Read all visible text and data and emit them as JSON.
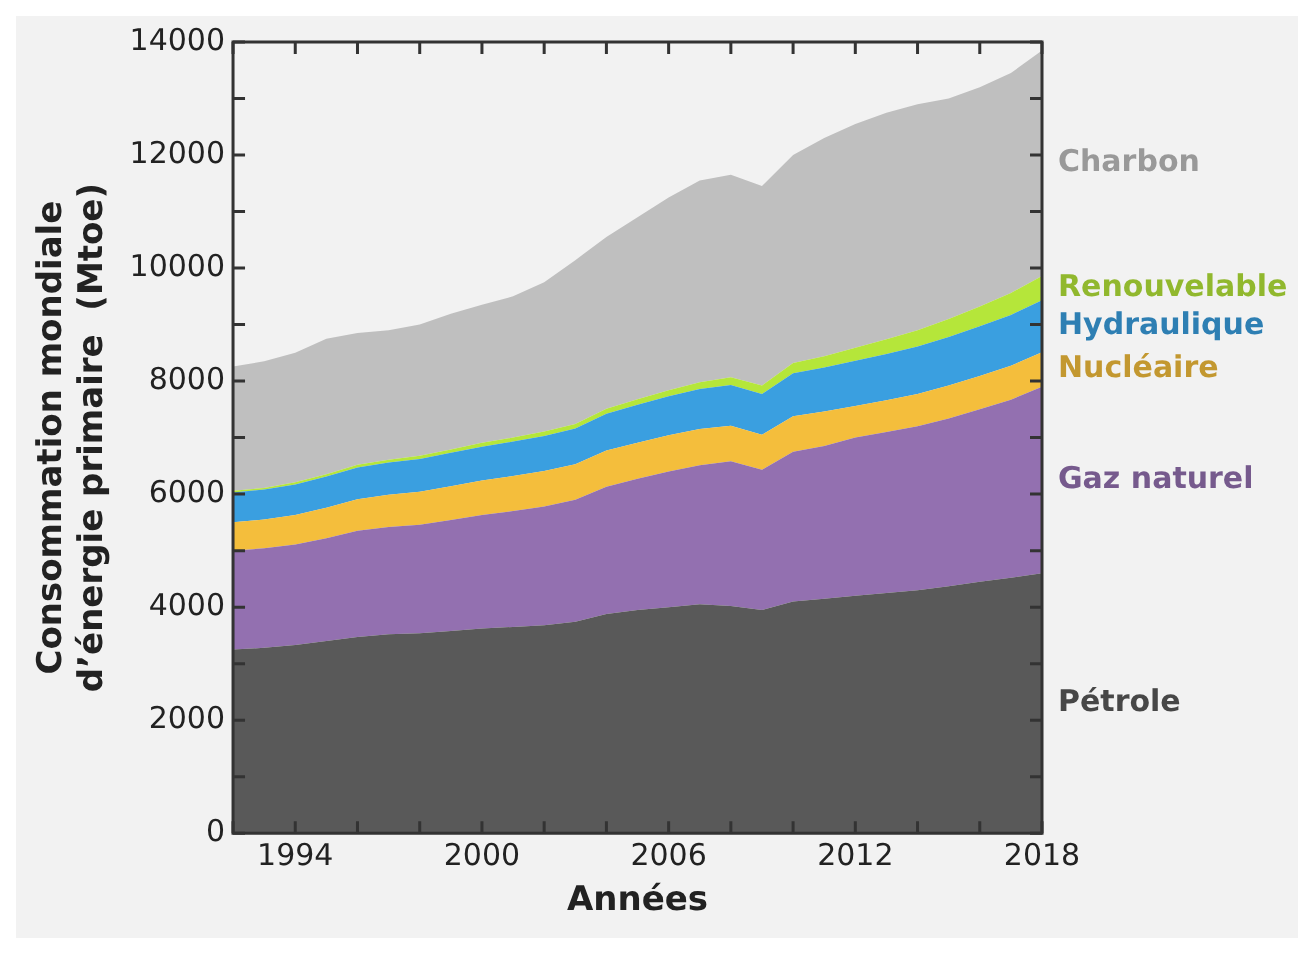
{
  "chart_data": {
    "type": "area",
    "stacked": true,
    "xlabel": "Années",
    "ylabel": "Consommation mondiale\nd’énergie primaire  (Mtoe)",
    "x": [
      1992,
      1993,
      1994,
      1995,
      1996,
      1997,
      1998,
      1999,
      2000,
      2001,
      2002,
      2003,
      2004,
      2005,
      2006,
      2007,
      2008,
      2009,
      2010,
      2011,
      2012,
      2013,
      2014,
      2015,
      2016,
      2017,
      2018
    ],
    "xlim": [
      1992,
      2018
    ],
    "xticks": [
      {
        "value": 1992,
        "label": null
      },
      1994,
      {
        "value": 1996,
        "label": null
      },
      {
        "value": 1998,
        "label": null
      },
      2000,
      {
        "value": 2002,
        "label": null
      },
      {
        "value": 2004,
        "label": null
      },
      2006,
      {
        "value": 2008,
        "label": null
      },
      {
        "value": 2010,
        "label": null
      },
      2012,
      {
        "value": 2014,
        "label": null
      },
      {
        "value": 2016,
        "label": null
      },
      2018
    ],
    "ylim": [
      0,
      14000
    ],
    "yticks": [
      0,
      {
        "value": 1000,
        "label": null
      },
      2000,
      {
        "value": 3000,
        "label": null
      },
      4000,
      {
        "value": 5000,
        "label": null
      },
      6000,
      {
        "value": 7000,
        "label": null
      },
      8000,
      {
        "value": 9000,
        "label": null
      },
      10000,
      {
        "value": 11000,
        "label": null
      },
      12000,
      {
        "value": 13000,
        "label": null
      },
      14000
    ],
    "grid": false,
    "legend": "right",
    "series": [
      {
        "name": "Pétrole",
        "color": "#595959",
        "values": [
          3250,
          3280,
          3330,
          3400,
          3470,
          3520,
          3540,
          3580,
          3620,
          3650,
          3680,
          3740,
          3880,
          3950,
          4000,
          4050,
          4020,
          3950,
          4100,
          4150,
          4200,
          4250,
          4300,
          4370,
          4450,
          4520,
          4600
        ]
      },
      {
        "name": "Gaz naturel",
        "color": "#9370b0",
        "values": [
          1750,
          1760,
          1780,
          1820,
          1880,
          1900,
          1920,
          1960,
          2010,
          2050,
          2100,
          2160,
          2250,
          2320,
          2400,
          2460,
          2560,
          2480,
          2650,
          2700,
          2800,
          2850,
          2900,
          2970,
          3050,
          3150,
          3300
        ]
      },
      {
        "name": "Nucléaire",
        "color": "#f4be3c",
        "values": [
          500,
          510,
          520,
          540,
          560,
          570,
          580,
          600,
          610,
          620,
          630,
          630,
          640,
          640,
          640,
          640,
          630,
          620,
          630,
          610,
          560,
          560,
          570,
          580,
          590,
          600,
          610
        ]
      },
      {
        "name": "Hydraulique",
        "color": "#3a9fe0",
        "values": [
          530,
          530,
          540,
          550,
          560,
          570,
          580,
          590,
          600,
          610,
          620,
          630,
          650,
          670,
          690,
          710,
          720,
          720,
          760,
          780,
          800,
          820,
          840,
          860,
          880,
          900,
          920
        ]
      },
      {
        "name": "Renouvelable",
        "color": "#b5e63a",
        "values": [
          30,
          30,
          40,
          40,
          50,
          50,
          60,
          60,
          70,
          70,
          80,
          80,
          90,
          100,
          110,
          120,
          140,
          150,
          180,
          200,
          230,
          260,
          290,
          320,
          350,
          390,
          430
        ]
      },
      {
        "name": "Charbon",
        "color": "#bfbfbf",
        "values": [
          2200,
          2240,
          2290,
          2400,
          2330,
          2290,
          2320,
          2400,
          2440,
          2500,
          2640,
          2900,
          3040,
          3220,
          3410,
          3570,
          3580,
          3530,
          3680,
          3860,
          3960,
          4010,
          4000,
          3900,
          3880,
          3890,
          3990
        ]
      }
    ]
  }
}
